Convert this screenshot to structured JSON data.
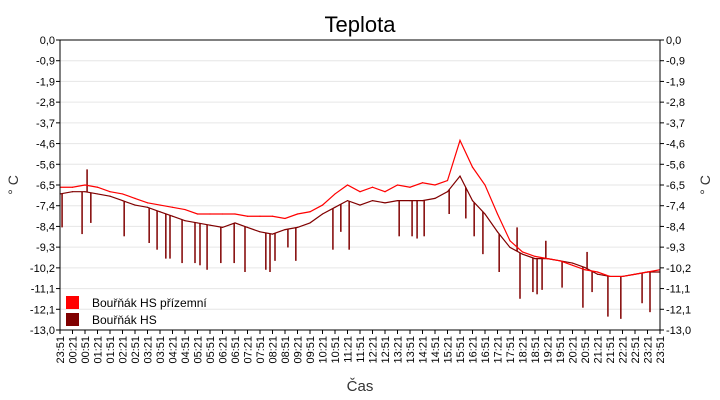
{
  "chart_data": {
    "type": "line",
    "title": "Teplota",
    "xlabel": "Čas",
    "ylabel": "° C",
    "ylim": [
      -13.0,
      0.0
    ],
    "grid": true,
    "legend_placement": "bottom-left",
    "y_ticks": [
      "0,0",
      "-0,9",
      "-1,9",
      "-2,8",
      "-3,7",
      "-4,6",
      "-5,6",
      "-6,5",
      "-7,4",
      "-8,4",
      "-9,3",
      "-10,2",
      "-11,1",
      "-12,1",
      "-13,0"
    ],
    "categories": [
      "23:51",
      "00:21",
      "00:51",
      "01:21",
      "01:51",
      "02:21",
      "02:51",
      "03:21",
      "03:51",
      "04:21",
      "04:51",
      "05:21",
      "05:51",
      "06:21",
      "06:51",
      "07:21",
      "07:51",
      "08:21",
      "08:51",
      "09:21",
      "09:51",
      "10:21",
      "10:51",
      "11:21",
      "11:51",
      "12:21",
      "12:51",
      "13:21",
      "13:51",
      "14:21",
      "14:51",
      "15:21",
      "15:51",
      "16:21",
      "16:51",
      "17:21",
      "17:51",
      "18:21",
      "18:51",
      "19:21",
      "19:51",
      "20:21",
      "20:51",
      "21:21",
      "21:51",
      "22:21",
      "22:51",
      "23:21",
      "23:51"
    ],
    "series": [
      {
        "name": "Bouřňák HS přízemní",
        "color": "#ff0000",
        "values": [
          -6.6,
          -6.6,
          -6.5,
          -6.6,
          -6.8,
          -6.9,
          -7.1,
          -7.3,
          -7.4,
          -7.5,
          -7.6,
          -7.8,
          -7.8,
          -7.8,
          -7.8,
          -7.9,
          -7.9,
          -7.9,
          -8.0,
          -7.8,
          -7.7,
          -7.4,
          -6.9,
          -6.5,
          -6.8,
          -6.6,
          -6.8,
          -6.5,
          -6.6,
          -6.4,
          -6.5,
          -6.3,
          -4.5,
          -5.7,
          -6.5,
          -7.8,
          -9.0,
          -9.5,
          -9.7,
          -9.8,
          -9.9,
          -10.1,
          -10.3,
          -10.4,
          -10.6,
          -10.6,
          -10.5,
          -10.4,
          -10.3
        ]
      },
      {
        "name": "Bouřňák HS",
        "color": "#800000",
        "values": [
          -6.9,
          -6.8,
          -6.8,
          -6.9,
          -7.0,
          -7.2,
          -7.4,
          -7.5,
          -7.7,
          -7.9,
          -8.1,
          -8.2,
          -8.3,
          -8.4,
          -8.2,
          -8.4,
          -8.6,
          -8.7,
          -8.5,
          -8.4,
          -8.2,
          -7.8,
          -7.5,
          -7.2,
          -7.4,
          -7.2,
          -7.3,
          -7.2,
          -7.2,
          -7.2,
          -7.1,
          -6.8,
          -6.1,
          -7.2,
          -7.8,
          -8.6,
          -9.3,
          -9.6,
          -9.8,
          -9.8,
          -9.9,
          -10.0,
          -10.2,
          -10.5,
          -10.6,
          -10.6,
          -10.5,
          -10.4,
          -10.4
        ],
        "spikes": [
          [
            "23:56",
            -8.4
          ],
          [
            "00:44",
            -8.7
          ],
          [
            "00:56",
            -5.8
          ],
          [
            "01:05",
            -8.2
          ],
          [
            "02:25",
            -8.8
          ],
          [
            "03:25",
            -9.1
          ],
          [
            "03:44",
            -9.4
          ],
          [
            "04:05",
            -9.8
          ],
          [
            "04:15",
            -9.8
          ],
          [
            "04:44",
            -10.0
          ],
          [
            "05:15",
            -10.0
          ],
          [
            "05:27",
            -10.1
          ],
          [
            "05:44",
            -10.3
          ],
          [
            "06:17",
            -10.0
          ],
          [
            "06:49",
            -10.0
          ],
          [
            "07:15",
            -10.4
          ],
          [
            "08:05",
            -10.3
          ],
          [
            "08:15",
            -10.4
          ],
          [
            "08:27",
            -9.9
          ],
          [
            "08:58",
            -9.3
          ],
          [
            "09:17",
            -9.9
          ],
          [
            "10:46",
            -9.4
          ],
          [
            "11:05",
            -8.6
          ],
          [
            "11:25",
            -9.4
          ],
          [
            "13:25",
            -8.8
          ],
          [
            "13:56",
            -8.8
          ],
          [
            "14:08",
            -8.9
          ],
          [
            "14:25",
            -8.8
          ],
          [
            "15:25",
            -7.8
          ],
          [
            "16:05",
            -8.0
          ],
          [
            "16:25",
            -8.8
          ],
          [
            "16:46",
            -9.6
          ],
          [
            "17:25",
            -10.4
          ],
          [
            "18:08",
            -8.4
          ],
          [
            "18:15",
            -11.6
          ],
          [
            "18:46",
            -11.3
          ],
          [
            "18:56",
            -11.4
          ],
          [
            "19:08",
            -11.2
          ],
          [
            "19:17",
            -9.0
          ],
          [
            "19:56",
            -11.1
          ],
          [
            "20:46",
            -12.0
          ],
          [
            "20:56",
            -9.5
          ],
          [
            "21:08",
            -11.3
          ],
          [
            "21:46",
            -12.4
          ],
          [
            "22:17",
            -12.5
          ],
          [
            "23:08",
            -11.8
          ],
          [
            "23:27",
            -12.2
          ]
        ]
      }
    ]
  }
}
